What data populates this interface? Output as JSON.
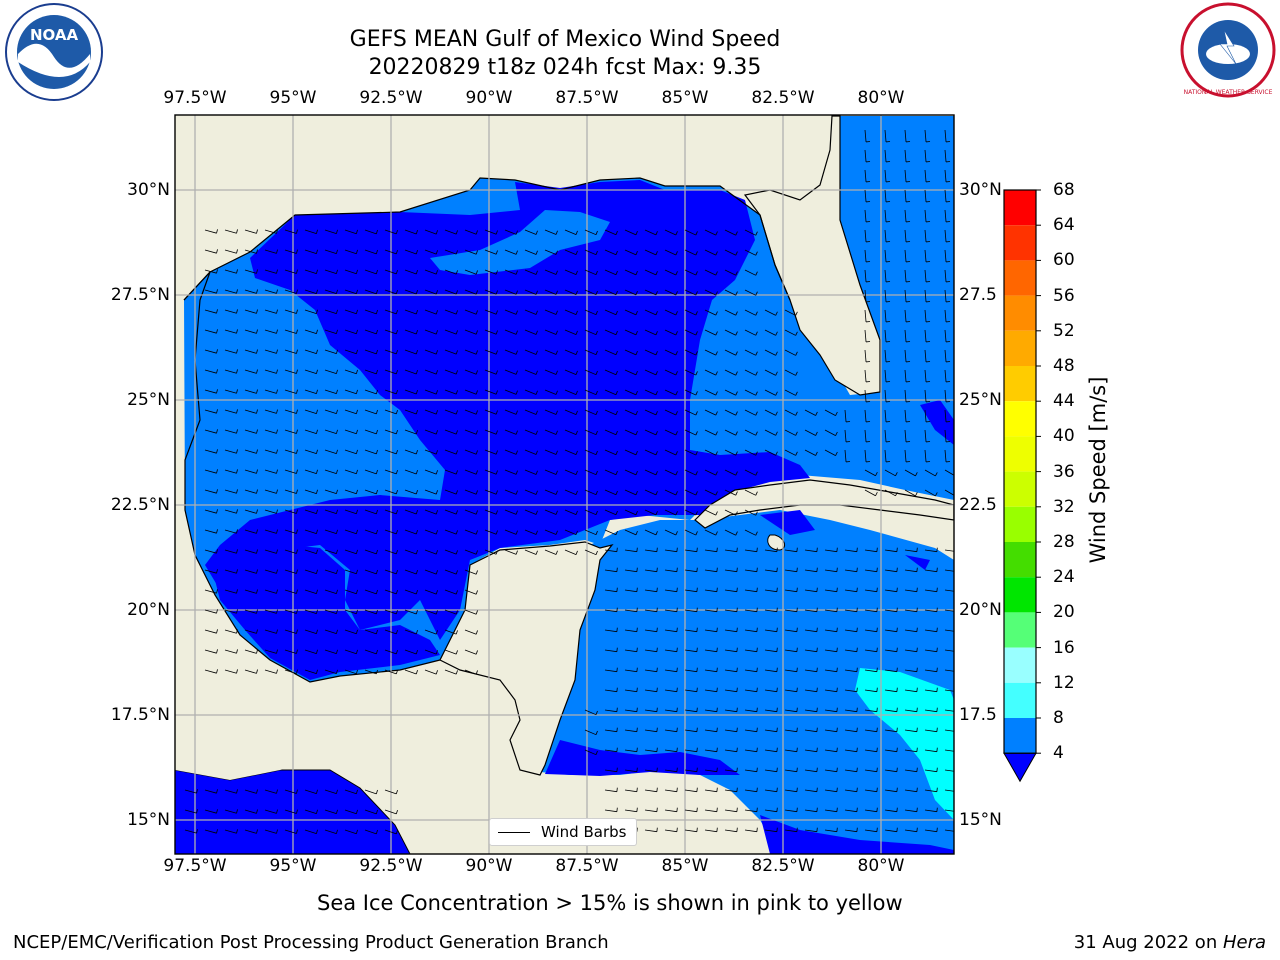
{
  "header": {
    "title_line1": "GEFS MEAN Gulf of Mexico Wind Speed",
    "title_line2": "20220829 t18z 024h fcst   Max: 9.35",
    "left_logo_text": "NOAA",
    "right_logo_text": "NATIONAL WEATHER SERVICE"
  },
  "map": {
    "lon_labels": [
      "97.5°W",
      "95°W",
      "92.5°W",
      "90°W",
      "87.5°W",
      "85°W",
      "82.5°W",
      "80°W"
    ],
    "lat_labels_left": [
      "30°N",
      "27.5°N",
      "25°N",
      "22.5°N",
      "20°N",
      "17.5°N",
      "15°N"
    ],
    "lat_labels_right": [
      "30°N",
      "27.5",
      "25°N",
      "22.5",
      "20°N",
      "17.5",
      "15°N"
    ],
    "legend_label": "Wind Barbs",
    "land_color": "#efeedd",
    "level_colors": {
      "4-8": "#0000ff",
      "8-12": "#0080ff",
      "12-16": "#00ffff"
    }
  },
  "colorbar": {
    "label": "Wind Speed [m/s]",
    "ticks": [
      "68",
      "64",
      "60",
      "56",
      "52",
      "48",
      "44",
      "40",
      "36",
      "32",
      "28",
      "24",
      "20",
      "16",
      "12",
      "8",
      "4"
    ],
    "colors": [
      "#ff0000",
      "#ff2600",
      "#ff4c00",
      "#ff7300",
      "#ff9900",
      "#ffbf00",
      "#ffe600",
      "#ffff00",
      "#e6ff00",
      "#ccff00",
      "#99ff00",
      "#4dff00",
      "#00e600",
      "#00cc33",
      "#33ff80",
      "#99ffff",
      "#4dffff",
      "#00ffff",
      "#0080ff",
      "#0000ff"
    ]
  },
  "footer": {
    "note": "Sea Ice Concentration > 15% is shown in pink to yellow",
    "credit": "NCEP/EMC/Verification Post Processing Product Generation Branch",
    "date": "31 Aug 2022 on ",
    "machine": "Hera"
  }
}
